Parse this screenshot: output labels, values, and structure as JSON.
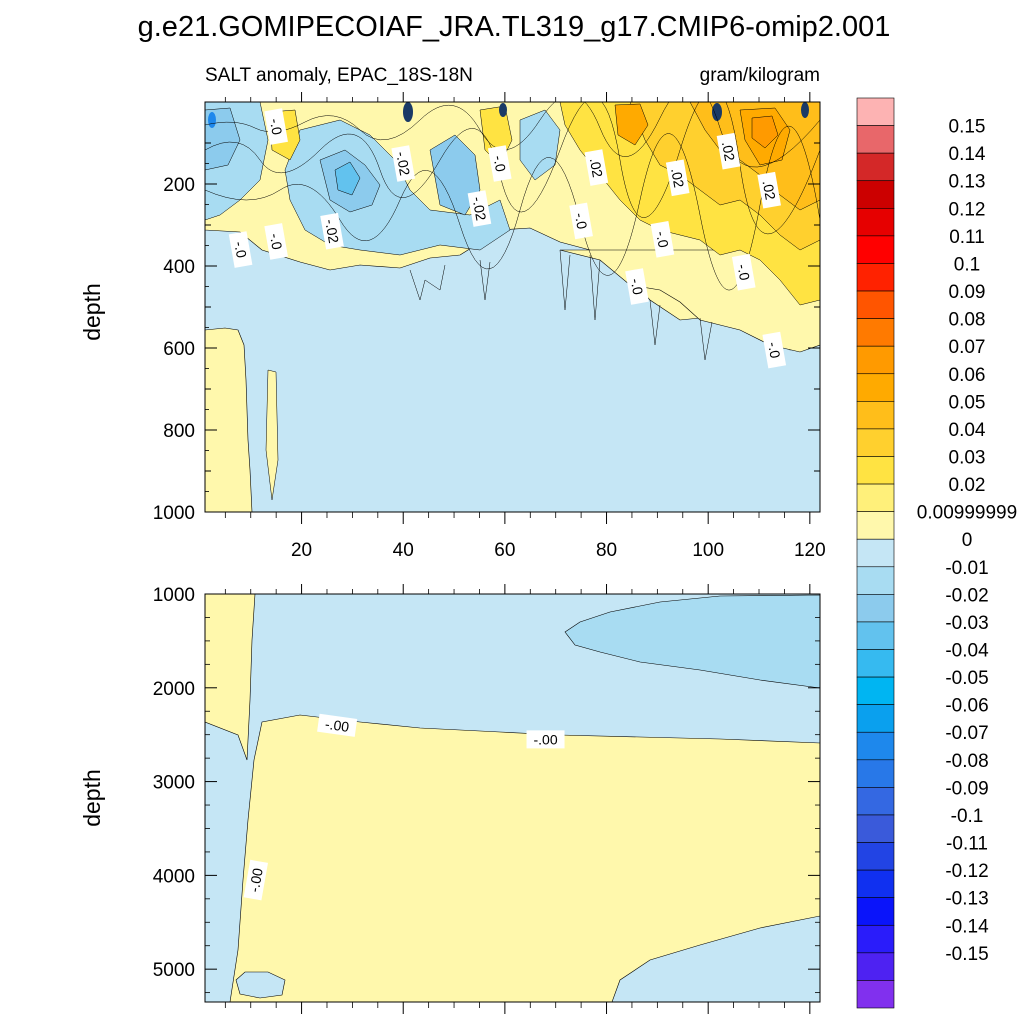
{
  "title": "g.e21.GOMIPECOIAF_JRA.TL319_g17.CMIP6-omip2.001",
  "subtitle_left": "SALT anomaly, EPAC_18S-18N",
  "subtitle_right": "gram/kilogram",
  "chart_data": [
    {
      "type": "contour",
      "name": "upper-panel",
      "ylabel": "depth",
      "xlabel": "",
      "xlim": [
        1,
        122
      ],
      "ylim": [
        1000,
        0
      ],
      "x_ticks": [
        20,
        40,
        60,
        80,
        100,
        120
      ],
      "y_ticks": [
        200,
        400,
        600,
        800,
        1000
      ],
      "contour_labels": [
        {
          "text": "-.0",
          "x": 15,
          "y": 60
        },
        {
          "text": "-.02",
          "x": 40,
          "y": 150
        },
        {
          "text": "-.0",
          "x": 59,
          "y": 150
        },
        {
          "text": ".02",
          "x": 78,
          "y": 160
        },
        {
          "text": ".02",
          "x": 94,
          "y": 185
        },
        {
          "text": ".02",
          "x": 104,
          "y": 120
        },
        {
          "text": ".02",
          "x": 112,
          "y": 215
        },
        {
          "text": "-.02",
          "x": 55,
          "y": 260
        },
        {
          "text": "-.02",
          "x": 26,
          "y": 315
        },
        {
          "text": "-.0",
          "x": 15,
          "y": 340
        },
        {
          "text": "-.0",
          "x": 8,
          "y": 360
        },
        {
          "text": "-.0",
          "x": 75,
          "y": 290
        },
        {
          "text": "-.0",
          "x": 91,
          "y": 335
        },
        {
          "text": "-.0",
          "x": 107,
          "y": 415
        },
        {
          "text": "-.0",
          "x": 86,
          "y": 450
        },
        {
          "text": "-.0",
          "x": 113,
          "y": 605
        }
      ]
    },
    {
      "type": "contour",
      "name": "lower-panel",
      "ylabel": "depth",
      "xlabel": "",
      "xlim": [
        1,
        122
      ],
      "ylim": [
        5350,
        1000
      ],
      "y_ticks": [
        1000,
        2000,
        3000,
        4000,
        5000
      ],
      "contour_labels": [
        {
          "text": "-.00",
          "x": 27,
          "y": 2400
        },
        {
          "text": "-.00",
          "x": 68,
          "y": 2550
        },
        {
          "text": "-.00",
          "x": 11,
          "y": 4050
        }
      ]
    }
  ],
  "colorbar": {
    "colors": [
      "#FDB3B3",
      "#E8676A",
      "#D42828",
      "#CC0000",
      "#E60000",
      "#FF0000",
      "#FF2200",
      "#FF5500",
      "#FF7A00",
      "#FF9A00",
      "#FFAA00",
      "#FFBE1A",
      "#FFD02E",
      "#FFE342",
      "#FFF07A",
      "#FFF8AC",
      "#C5E6F5",
      "#A8DCF2",
      "#8CCBED",
      "#62C2EE",
      "#36BAF0",
      "#00B5F2",
      "#0AA0EE",
      "#1E88EC",
      "#2878E8",
      "#3468E2",
      "#3A5ADA",
      "#2244E4",
      "#1030F0",
      "#0A14FA",
      "#2A1CFA",
      "#4E22F2",
      "#8130EE"
    ],
    "labels": [
      "0.15",
      "0.14",
      "0.13",
      "0.12",
      "0.11",
      "0.1",
      "0.09",
      "0.08",
      "0.07",
      "0.06",
      "0.05",
      "0.04",
      "0.03",
      "0.02",
      "0.00999999",
      "0",
      "-0.01",
      "-0.02",
      "-0.03",
      "-0.04",
      "-0.05",
      "-0.06",
      "-0.07",
      "-0.08",
      "-0.09",
      "-0.1",
      "-0.11",
      "-0.12",
      "-0.13",
      "-0.14",
      "-0.15"
    ]
  }
}
